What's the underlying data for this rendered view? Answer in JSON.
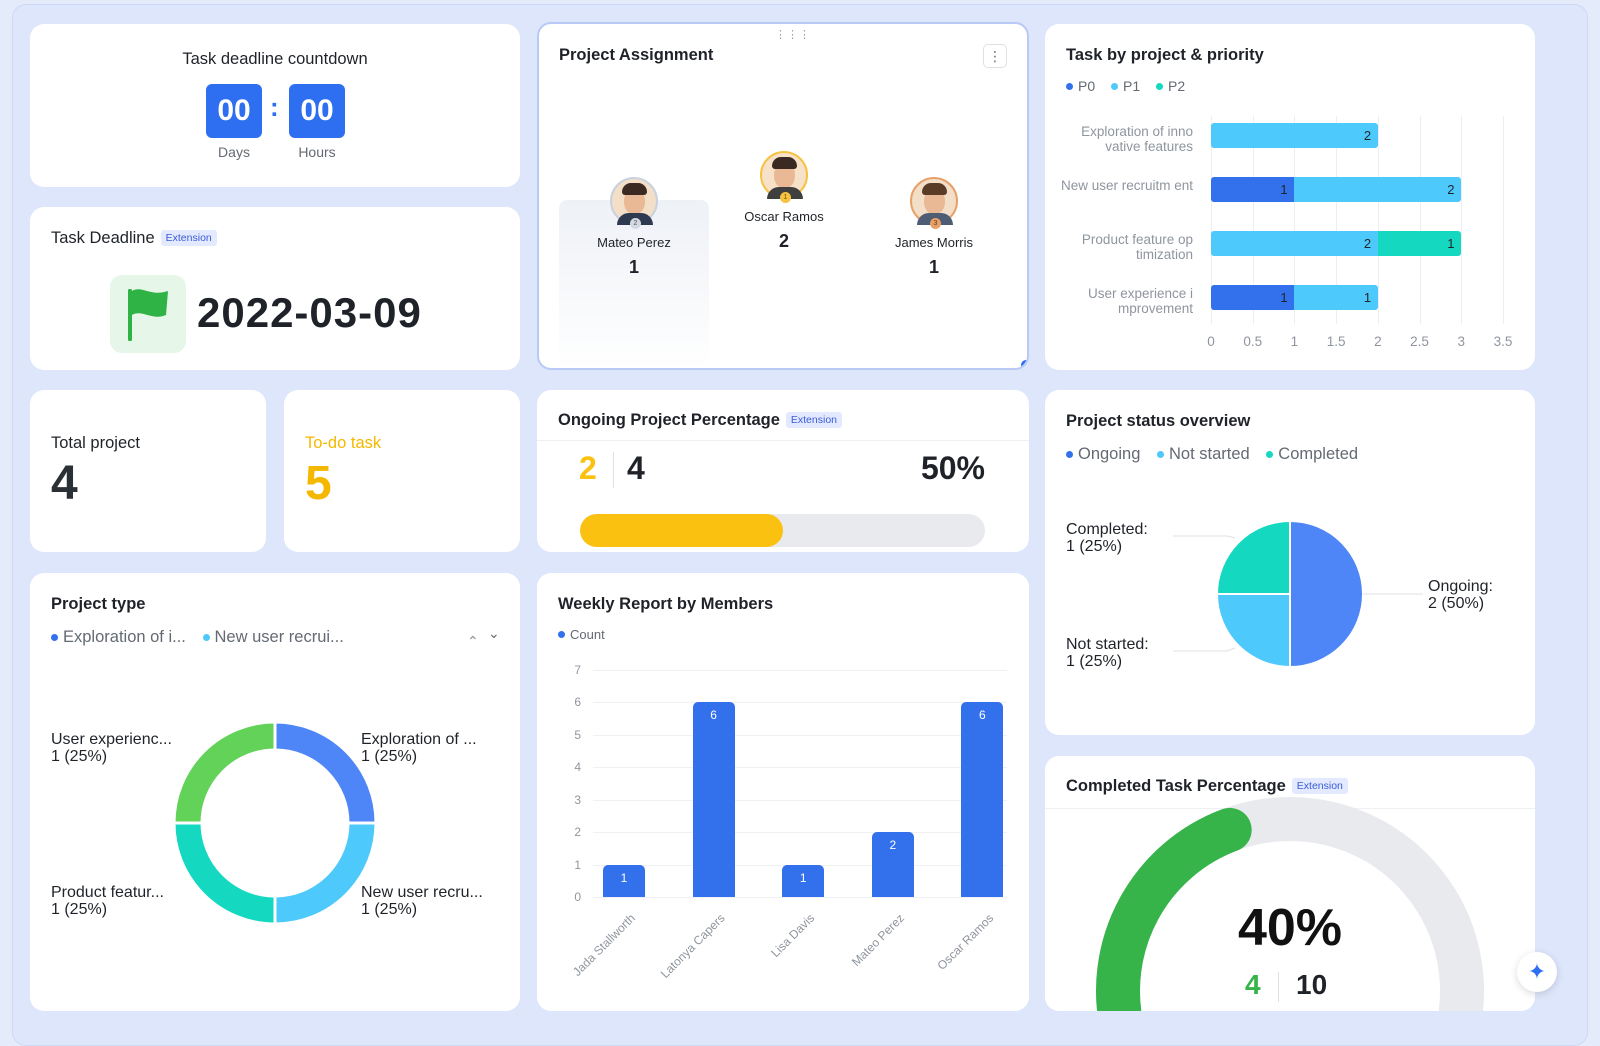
{
  "countdown": {
    "title": "Task deadline countdown",
    "days": "00",
    "hours": "00",
    "separator": ":",
    "days_label": "Days",
    "hours_label": "Hours"
  },
  "deadline": {
    "title": "Task Deadline",
    "badge": "Extension",
    "date": "2022-03-09",
    "icon": "flag-icon",
    "icon_color": "#2fb344"
  },
  "assignment": {
    "title": "Project Assignment",
    "menu_icon": "more-vertical-icon",
    "drag_icon": "drag-handle-icon",
    "members": [
      {
        "name": "Mateo Perez",
        "count": "1",
        "rank": "2"
      },
      {
        "name": "Oscar Ramos",
        "count": "2",
        "rank": "1"
      },
      {
        "name": "James Morris",
        "count": "1",
        "rank": "3"
      }
    ]
  },
  "task_priority": {
    "title": "Task by project & priority",
    "legend": [
      {
        "label": "P0",
        "color": "#3370eb"
      },
      {
        "label": "P1",
        "color": "#4dc9fb"
      },
      {
        "label": "P2",
        "color": "#14d8c0"
      }
    ],
    "chart_data": {
      "type": "bar",
      "orientation": "horizontal",
      "stacked": true,
      "categories": [
        "Exploration of inno vative features",
        "New user recruitm ent",
        "Product feature op timization",
        "User experience i mprovement"
      ],
      "series": [
        {
          "name": "P0",
          "values": [
            0,
            1,
            0,
            1
          ]
        },
        {
          "name": "P1",
          "values": [
            2,
            2,
            2,
            1
          ]
        },
        {
          "name": "P2",
          "values": [
            0,
            0,
            1,
            0
          ]
        }
      ],
      "xticks": [
        "0",
        "0.5",
        "1",
        "1.5",
        "2",
        "2.5",
        "3",
        "3.5"
      ],
      "xlim": [
        0,
        3.5
      ]
    }
  },
  "totals": {
    "total_label": "Total project",
    "total_value": "4",
    "todo_label": "To-do task",
    "todo_value": "5",
    "todo_color": "#f5b800"
  },
  "ongoing": {
    "title": "Ongoing Project Percentage",
    "badge": "Extension",
    "part": "2",
    "total": "4",
    "percent_label": "50%",
    "fraction": 0.5,
    "bar_color": "#fbc110"
  },
  "status": {
    "title": "Project status overview",
    "legend": [
      {
        "label": "Ongoing",
        "color": "#3370eb"
      },
      {
        "label": "Not started",
        "color": "#4dc9fb"
      },
      {
        "label": "Completed",
        "color": "#14d8c0"
      }
    ],
    "slice_labels": [
      {
        "name": "Completed:",
        "value": "1 (25%)"
      },
      {
        "name": "Ongoing:",
        "value": "2 (50%)"
      },
      {
        "name": "Not started:",
        "value": "1 (25%)"
      }
    ],
    "chart_data": {
      "type": "pie",
      "categories": [
        "Ongoing",
        "Not started",
        "Completed"
      ],
      "values": [
        2,
        1,
        1
      ],
      "colors": [
        "#4e86f7",
        "#4dc9fb",
        "#14d8c0"
      ]
    }
  },
  "project_type": {
    "title": "Project type",
    "legend": [
      {
        "label": "Exploration of i...",
        "color": "#3370eb"
      },
      {
        "label": "New user recrui...",
        "color": "#4dc9fb"
      }
    ],
    "pager_up": "⌃",
    "pager_down": "⌄",
    "slice_labels": [
      {
        "name": "User experienc...",
        "value": "1 (25%)"
      },
      {
        "name": "Exploration of ...",
        "value": "1 (25%)"
      },
      {
        "name": "Product featur...",
        "value": "1 (25%)"
      },
      {
        "name": "New user recru...",
        "value": "1 (25%)"
      }
    ],
    "chart_data": {
      "type": "pie",
      "donut": true,
      "categories": [
        "Exploration of innovative features",
        "New user recruitment",
        "Product feature optimization",
        "User experience improvement"
      ],
      "values": [
        1,
        1,
        1,
        1
      ],
      "colors": [
        "#4e86f7",
        "#4dc9fb",
        "#14d8c0",
        "#62d259"
      ]
    }
  },
  "weekly": {
    "title": "Weekly Report by Members",
    "legend": [
      {
        "label": "Count",
        "color": "#3370eb"
      }
    ],
    "chart_data": {
      "type": "bar",
      "categories": [
        "Jada Stallworth",
        "Latonya Capers",
        "Lisa Davis",
        "Mateo Perez",
        "Oscar Ramos"
      ],
      "series": [
        {
          "name": "Count",
          "values": [
            1,
            6,
            1,
            2,
            6
          ]
        }
      ],
      "yticks": [
        "0",
        "1",
        "2",
        "3",
        "4",
        "5",
        "6",
        "7"
      ],
      "ylim": [
        0,
        7
      ]
    }
  },
  "completed": {
    "title": "Completed Task Percentage",
    "badge": "Extension",
    "percent_label": "40%",
    "part": "4",
    "total": "10",
    "fraction": 0.4,
    "arc_color": "#36b44a",
    "track_color": "#e9eaee"
  },
  "assistant_icon": "sparkle-icon"
}
